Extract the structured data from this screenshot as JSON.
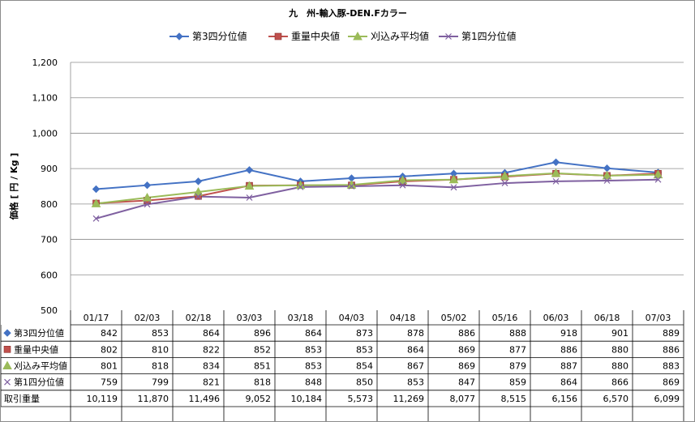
{
  "chart_data": {
    "type": "line",
    "title": "九　州-輸入豚-DEN.Fカラー",
    "ylabel": "価格 [ 円 / Kg ]",
    "ylim": [
      500,
      1200
    ],
    "yticks": [
      "500",
      "600",
      "700",
      "800",
      "900",
      "1,000",
      "1,100",
      "1,200"
    ],
    "ytick_values": [
      500,
      600,
      700,
      800,
      900,
      1000,
      1100,
      1200
    ],
    "categories": [
      "01/17",
      "02/03",
      "02/18",
      "03/03",
      "03/18",
      "04/03",
      "04/18",
      "05/02",
      "05/16",
      "06/03",
      "06/18",
      "07/03"
    ],
    "legend_position": "top",
    "grid": true,
    "series": [
      {
        "name": "第3四分位値",
        "color": "#4472C4",
        "marker": "diamond",
        "values": [
          842,
          853,
          864,
          896,
          864,
          873,
          878,
          886,
          888,
          918,
          901,
          889
        ],
        "labels": [
          "842",
          "853",
          "864",
          "896",
          "864",
          "873",
          "878",
          "886",
          "888",
          "918",
          "901",
          "889"
        ]
      },
      {
        "name": "重量中央値",
        "color": "#C0504D",
        "marker": "square",
        "values": [
          802,
          810,
          822,
          852,
          853,
          853,
          864,
          869,
          877,
          886,
          880,
          886
        ],
        "labels": [
          "802",
          "810",
          "822",
          "852",
          "853",
          "853",
          "864",
          "869",
          "877",
          "886",
          "880",
          "886"
        ]
      },
      {
        "name": "刈込み平均値",
        "color": "#9BBB59",
        "marker": "triangle",
        "values": [
          801,
          818,
          834,
          851,
          853,
          854,
          867,
          869,
          879,
          887,
          880,
          883
        ],
        "labels": [
          "801",
          "818",
          "834",
          "851",
          "853",
          "854",
          "867",
          "869",
          "879",
          "887",
          "880",
          "883"
        ]
      },
      {
        "name": "第1四分位値",
        "color": "#7F60A0",
        "marker": "x",
        "values": [
          759,
          799,
          821,
          818,
          848,
          850,
          853,
          847,
          859,
          864,
          866,
          869
        ],
        "labels": [
          "759",
          "799",
          "821",
          "818",
          "848",
          "850",
          "853",
          "847",
          "859",
          "864",
          "866",
          "869"
        ]
      }
    ],
    "table_extra_row": {
      "name": "取引重量",
      "labels": [
        "10,119",
        "11,870",
        "11,496",
        "9,052",
        "10,184",
        "5,573",
        "11,269",
        "8,077",
        "8,515",
        "6,156",
        "6,570",
        "6,099"
      ]
    }
  }
}
